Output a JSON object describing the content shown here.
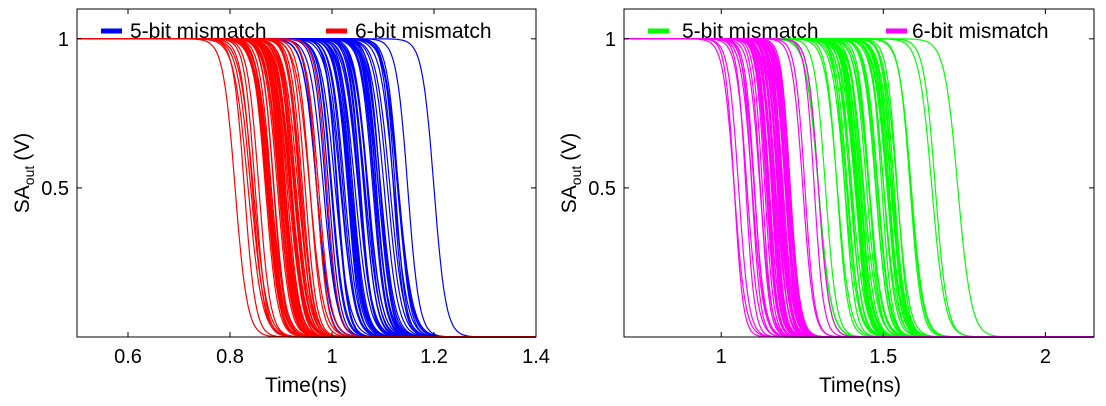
{
  "chart_data": [
    {
      "type": "line",
      "xlabel": "Time(ns)",
      "ylabel_main": "SA",
      "ylabel_sub": "out",
      "ylabel_unit": "(V)",
      "xlim": [
        0.5,
        1.4
      ],
      "ylim": [
        0,
        1.1
      ],
      "xticks": [
        0.6,
        0.8,
        1,
        1.2,
        1.4
      ],
      "xtick_labels": [
        "0.6",
        "0.8",
        "1",
        "1.2",
        "1.4"
      ],
      "yticks": [
        0.5,
        1
      ],
      "ytick_labels": [
        "0.5",
        "1"
      ],
      "legend_position": "top",
      "series": [
        {
          "name": "5-bit mismatch",
          "color": "#0000ff",
          "count": 60,
          "v_high": 1,
          "t_mid_min": 0.97,
          "t_mid_max": 1.2,
          "t_mid_mean": 1.06,
          "t_mid_sd": 0.045,
          "width_ns": 0.012
        },
        {
          "name": "6-bit mismatch",
          "color": "#ff0000",
          "count": 60,
          "v_high": 1,
          "t_mid_min": 0.81,
          "t_mid_max": 0.99,
          "t_mid_mean": 0.9,
          "t_mid_sd": 0.035,
          "width_ns": 0.012
        }
      ]
    },
    {
      "type": "line",
      "xlabel": "Time(ns)",
      "ylabel_main": "SA",
      "ylabel_sub": "out",
      "ylabel_unit": "(V)",
      "xlim": [
        0.7,
        2.15
      ],
      "ylim": [
        0,
        1.1
      ],
      "xticks": [
        1,
        1.5,
        2
      ],
      "xtick_labels": [
        "1",
        "1.5",
        "2"
      ],
      "yticks": [
        0.5,
        1
      ],
      "ytick_labels": [
        "0.5",
        "1"
      ],
      "legend_position": "top",
      "series": [
        {
          "name": "5-bit mismatch",
          "color": "#00ff00",
          "count": 60,
          "v_high": 1,
          "t_mid_min": 1.3,
          "t_mid_max": 1.73,
          "t_mid_mean": 1.45,
          "t_mid_sd": 0.08,
          "width_ns": 0.018
        },
        {
          "name": "6-bit mismatch",
          "color": "#ff00ff",
          "count": 60,
          "v_high": 1,
          "t_mid_min": 1.04,
          "t_mid_max": 1.3,
          "t_mid_mean": 1.17,
          "t_mid_sd": 0.05,
          "width_ns": 0.015
        }
      ]
    }
  ]
}
